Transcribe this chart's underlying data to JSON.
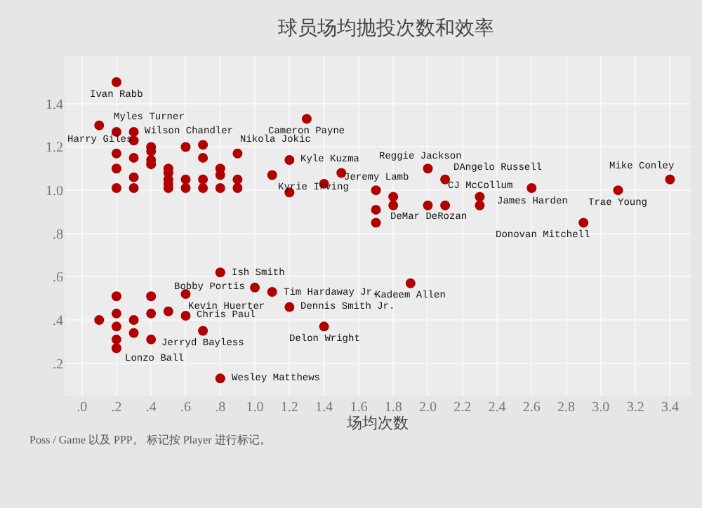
{
  "chart_data": {
    "type": "scatter",
    "title": "球员场均抛投次数和效率",
    "xlabel": "场均次数",
    "series": [
      {
        "color": "#b00000",
        "x": [
          0.2,
          0.2,
          0.1,
          0.3,
          0.9,
          1.3,
          1.2,
          1.1,
          2.0,
          2.1,
          1.7,
          2.3,
          2.6,
          3.1,
          3.4,
          1.8,
          2.9,
          0.8,
          1.0,
          1.1,
          0.6,
          0.6,
          1.2,
          1.4,
          0.7,
          0.2,
          0.8,
          1.9,
          0.2,
          0.2,
          0.2,
          0.3,
          0.3,
          0.3,
          0.3,
          0.4,
          0.4,
          0.4,
          0.4,
          0.5,
          0.5,
          0.5,
          0.5,
          0.5,
          0.6,
          0.6,
          0.6,
          0.7,
          0.7,
          0.7,
          0.7,
          0.8,
          0.8,
          0.8,
          0.9,
          0.9,
          1.4,
          1.5,
          1.2,
          0.1,
          0.2,
          0.2,
          0.2,
          0.2,
          0.3,
          0.3,
          0.4,
          0.4,
          0.4,
          0.5,
          1.7,
          1.7,
          1.8,
          2.0,
          2.1,
          2.3
        ],
        "values": [
          1.5,
          1.27,
          1.3,
          1.27,
          1.17,
          1.33,
          1.14,
          1.07,
          1.1,
          1.05,
          1.0,
          0.97,
          1.01,
          1.0,
          1.05,
          0.93,
          0.85,
          0.62,
          0.55,
          0.53,
          0.52,
          0.42,
          0.46,
          0.37,
          0.35,
          0.27,
          0.13,
          0.57,
          1.17,
          1.1,
          1.01,
          1.23,
          1.15,
          1.06,
          1.01,
          1.2,
          1.18,
          1.14,
          1.12,
          1.1,
          1.08,
          1.05,
          1.03,
          1.01,
          1.2,
          1.05,
          1.01,
          1.21,
          1.15,
          1.05,
          1.01,
          1.1,
          1.07,
          1.01,
          1.05,
          1.01,
          1.03,
          1.08,
          0.99,
          0.4,
          0.51,
          0.43,
          0.37,
          0.31,
          0.4,
          0.34,
          0.51,
          0.43,
          0.31,
          0.44,
          0.91,
          0.85,
          0.97,
          0.93,
          0.93,
          0.93
        ]
      }
    ],
    "xlim": [
      -0.1,
      3.52
    ],
    "ylim": [
      0.05,
      1.62
    ],
    "xticks": [
      {
        "value": 0,
        "label": ".0"
      },
      {
        "value": 0.2,
        "label": ".2"
      },
      {
        "value": 0.4,
        "label": ".4"
      },
      {
        "value": 0.6,
        "label": ".6"
      },
      {
        "value": 0.8,
        "label": ".8"
      },
      {
        "value": 1.0,
        "label": "1.0"
      },
      {
        "value": 1.2,
        "label": "1.2"
      },
      {
        "value": 1.4,
        "label": "1.4"
      },
      {
        "value": 1.6,
        "label": "1.6"
      },
      {
        "value": 1.8,
        "label": "1.8"
      },
      {
        "value": 2.0,
        "label": "2.0"
      },
      {
        "value": 2.2,
        "label": "2.2"
      },
      {
        "value": 2.4,
        "label": "2.4"
      },
      {
        "value": 2.6,
        "label": "2.6"
      },
      {
        "value": 2.8,
        "label": "2.8"
      },
      {
        "value": 3.0,
        "label": "3.0"
      },
      {
        "value": 3.2,
        "label": "3.2"
      },
      {
        "value": 3.4,
        "label": "3.4"
      }
    ],
    "yticks": [
      {
        "value": 0.2,
        "label": ".2"
      },
      {
        "value": 0.4,
        "label": ".4"
      },
      {
        "value": 0.6,
        "label": ".6"
      },
      {
        "value": 0.8,
        "label": ".8"
      },
      {
        "value": 1.0,
        "label": "1.0"
      },
      {
        "value": 1.2,
        "label": "1.2"
      },
      {
        "value": 1.4,
        "label": "1.4"
      }
    ],
    "grid": true,
    "marker": "circle",
    "annotations": [
      {
        "text": "Ivan Rabb",
        "x": 0.2,
        "y": 1.5
      },
      {
        "text": "Myles Turner",
        "x": 0.2,
        "y": 1.27
      },
      {
        "text": "Harry Giles",
        "x": 0.1,
        "y": 1.3
      },
      {
        "text": "Wilson Chandler",
        "x": 0.3,
        "y": 1.27
      },
      {
        "text": "Nikola Jokic",
        "x": 0.9,
        "y": 1.17
      },
      {
        "text": "Cameron Payne",
        "x": 1.3,
        "y": 1.33
      },
      {
        "text": "Kyle Kuzma",
        "x": 1.2,
        "y": 1.14
      },
      {
        "text": "Kyrie Irving",
        "x": 1.1,
        "y": 1.07
      },
      {
        "text": "Reggie Jackson",
        "x": 2.0,
        "y": 1.1
      },
      {
        "text": "DAngelo Russell",
        "x": 2.1,
        "y": 1.05
      },
      {
        "text": "Jeremy Lamb",
        "x": 1.7,
        "y": 1.0
      },
      {
        "text": "CJ McCollum",
        "x": 2.3,
        "y": 0.97
      },
      {
        "text": "James Harden",
        "x": 2.6,
        "y": 1.01
      },
      {
        "text": "Trae Young",
        "x": 3.1,
        "y": 1.0
      },
      {
        "text": "Mike Conley",
        "x": 3.4,
        "y": 1.05
      },
      {
        "text": "DeMar DeRozan",
        "x": 1.8,
        "y": 0.93
      },
      {
        "text": "Donovan Mitchell",
        "x": 2.9,
        "y": 0.85
      },
      {
        "text": "Ish Smith",
        "x": 0.8,
        "y": 0.62
      },
      {
        "text": "Bobby Portis",
        "x": 1.0,
        "y": 0.55
      },
      {
        "text": "Tim Hardaway Jr.",
        "x": 1.1,
        "y": 0.53
      },
      {
        "text": "Kevin Huerter",
        "x": 0.6,
        "y": 0.52
      },
      {
        "text": "Chris Paul",
        "x": 0.6,
        "y": 0.42
      },
      {
        "text": "Dennis Smith Jr.",
        "x": 1.2,
        "y": 0.46
      },
      {
        "text": "Delon Wright",
        "x": 1.4,
        "y": 0.37
      },
      {
        "text": "Jerryd Bayless",
        "x": 0.7,
        "y": 0.35
      },
      {
        "text": "Lonzo Ball",
        "x": 0.2,
        "y": 0.27
      },
      {
        "text": "Wesley Matthews",
        "x": 0.8,
        "y": 0.13
      },
      {
        "text": "Kadeem Allen",
        "x": 1.9,
        "y": 0.57
      },
      "Poss / Game 以及 PPP。 标记按 Player 进行标记。"
    ]
  }
}
